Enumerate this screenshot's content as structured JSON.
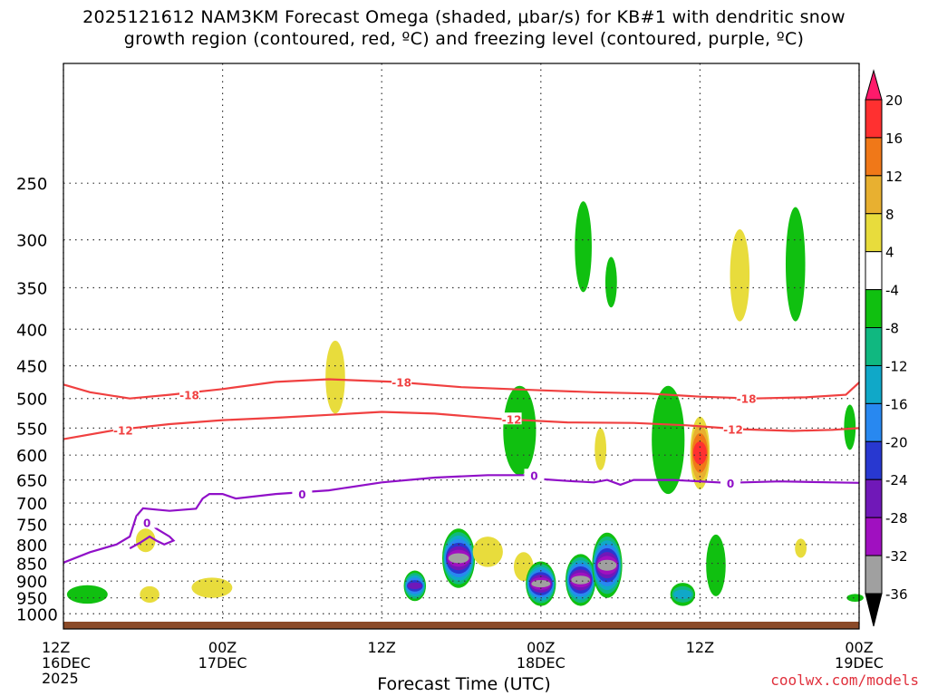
{
  "title_line1": "2025121612 NAM3KM Forecast Omega (shaded, μbar/s) for KB#1 with dendritic snow",
  "title_line2": "growth region (contoured, red, ºC) and freezing level (contoured, purple, ºC)",
  "credit": "coolwx.com/models",
  "chart_data": {
    "type": "heatmap",
    "title": "2025121612 NAM3KM Forecast Omega (shaded, μbar/s) for KB#1 with dendritic snow growth region (contoured, red, ºC) and freezing level (contoured, purple, ºC)",
    "xlabel": "Forecast Time (UTC)",
    "ylabel": "",
    "x_unit": "hours from 2025-12-16 12Z",
    "xlim": [
      0,
      60
    ],
    "ylim": [
      1050,
      170
    ],
    "y_scale": "log-pressure",
    "grid": true,
    "y_ticks": [
      250,
      300,
      350,
      400,
      450,
      500,
      550,
      600,
      650,
      700,
      750,
      800,
      850,
      900,
      950,
      1000
    ],
    "x_ticks": [
      {
        "x": 0,
        "label": "12Z\n16DEC\n2025"
      },
      {
        "x": 12,
        "label": "00Z\n17DEC"
      },
      {
        "x": 24,
        "label": "12Z"
      },
      {
        "x": 36,
        "label": "00Z\n18DEC"
      },
      {
        "x": 48,
        "label": "12Z"
      },
      {
        "x": 60,
        "label": "00Z\n19DEC"
      }
    ],
    "colorbar": {
      "labels": [
        "20",
        "16",
        "12",
        "8",
        "4",
        "-4",
        "-8",
        "-12",
        "-16",
        "-20",
        "-24",
        "-28",
        "-32",
        "-36"
      ],
      "colors": [
        "#ff1a6b",
        "#ff3030",
        "#f07818",
        "#e8b030",
        "#e8dc3c",
        "#ffffff",
        "#10c010",
        "#10b880",
        "#10a8c8",
        "#2888f0",
        "#2838d0",
        "#7018b8",
        "#a010c0",
        "#a0a0a0",
        "#000000"
      ]
    },
    "contours": [
      {
        "name": "-18",
        "color": "#f04040",
        "points": [
          [
            0,
            478
          ],
          [
            2,
            490
          ],
          [
            5,
            500
          ],
          [
            8,
            494
          ],
          [
            12,
            485
          ],
          [
            16,
            474
          ],
          [
            20,
            470
          ],
          [
            25,
            474
          ],
          [
            30,
            482
          ],
          [
            36,
            487
          ],
          [
            40,
            490
          ],
          [
            44,
            492
          ],
          [
            48,
            497
          ],
          [
            52,
            500
          ],
          [
            56,
            498
          ],
          [
            59,
            494
          ],
          [
            60,
            475
          ]
        ],
        "label_at": [
          [
            9.5,
            "-18"
          ],
          [
            25.5,
            "-18"
          ],
          [
            51.5,
            "-18"
          ]
        ]
      },
      {
        "name": "-12",
        "color": "#f04040",
        "points": [
          [
            0,
            570
          ],
          [
            4,
            553
          ],
          [
            8,
            543
          ],
          [
            12,
            536
          ],
          [
            16,
            532
          ],
          [
            20,
            527
          ],
          [
            24,
            522
          ],
          [
            28,
            525
          ],
          [
            33,
            534
          ],
          [
            38,
            540
          ],
          [
            43,
            541
          ],
          [
            47,
            545
          ],
          [
            51,
            552
          ],
          [
            55,
            555
          ],
          [
            58,
            553
          ],
          [
            60,
            550
          ]
        ],
        "label_at": [
          [
            4.5,
            "-12"
          ],
          [
            33.8,
            "-12"
          ],
          [
            50.5,
            "-12"
          ]
        ]
      },
      {
        "name": "0",
        "color": "#9010c8",
        "points": [
          [
            0,
            848
          ],
          [
            2,
            820
          ],
          [
            4,
            800
          ],
          [
            5,
            780
          ],
          [
            5.5,
            730
          ],
          [
            6,
            712
          ],
          [
            7,
            715
          ],
          [
            8,
            718
          ],
          [
            10,
            713
          ],
          [
            10.5,
            690
          ],
          [
            11,
            680
          ],
          [
            12,
            680
          ],
          [
            13,
            690
          ],
          [
            16,
            680
          ],
          [
            20,
            672
          ],
          [
            24,
            655
          ],
          [
            28,
            645
          ],
          [
            32,
            640
          ],
          [
            35,
            640
          ],
          [
            36,
            648
          ],
          [
            38,
            652
          ],
          [
            40,
            655
          ],
          [
            41,
            650
          ],
          [
            42,
            660
          ],
          [
            43,
            650
          ],
          [
            46,
            650
          ],
          [
            50,
            656
          ],
          [
            54,
            653
          ],
          [
            58,
            655
          ],
          [
            60,
            656
          ]
        ],
        "label_at": [
          [
            18,
            "0"
          ],
          [
            35.5,
            "0"
          ],
          [
            50.3,
            "0"
          ]
        ]
      },
      {
        "name": "0",
        "color": "#9010c8",
        "points": [
          [
            5.5,
            730
          ],
          [
            6.5,
            745
          ],
          [
            7,
            760
          ],
          [
            7.5,
            770
          ],
          [
            8,
            780
          ],
          [
            8.3,
            790
          ],
          [
            7.6,
            800
          ],
          [
            7,
            790
          ],
          [
            6.5,
            780
          ],
          [
            5.8,
            795
          ],
          [
            5,
            810
          ]
        ],
        "label_at": [
          [
            6.3,
            "0"
          ]
        ]
      }
    ],
    "omega_cells": [
      {
        "x": 1.8,
        "p": 940,
        "dx": 1.4,
        "dp": 28,
        "level": -6
      },
      {
        "x": 6.2,
        "p": 790,
        "dx": 0.6,
        "dp": 30,
        "level": 4
      },
      {
        "x": 6.5,
        "p": 940,
        "dx": 0.6,
        "dp": 25,
        "level": 4
      },
      {
        "x": 11.2,
        "p": 920,
        "dx": 1.4,
        "dp": 30,
        "level": 4
      },
      {
        "x": 20.5,
        "p": 470,
        "dx": 0.6,
        "dp": 55,
        "level": 4
      },
      {
        "x": 26.5,
        "p": 915,
        "dx": 0.7,
        "dp": 45,
        "level": -26
      },
      {
        "x": 29.8,
        "p": 840,
        "dx": 1.1,
        "dp": 80,
        "level": -36
      },
      {
        "x": 32.0,
        "p": 820,
        "dx": 1.0,
        "dp": 40,
        "level": 8
      },
      {
        "x": 34.4,
        "p": 560,
        "dx": 1.1,
        "dp": 80,
        "level": -6
      },
      {
        "x": 34.7,
        "p": 860,
        "dx": 0.6,
        "dp": 40,
        "level": 8
      },
      {
        "x": 36.0,
        "p": 910,
        "dx": 1.0,
        "dp": 65,
        "level": -36
      },
      {
        "x": 39.0,
        "p": 900,
        "dx": 1.0,
        "dp": 75,
        "level": -36
      },
      {
        "x": 39.2,
        "p": 310,
        "dx": 0.5,
        "dp": 45,
        "level": -8
      },
      {
        "x": 40.5,
        "p": 590,
        "dx": 0.3,
        "dp": 40,
        "level": 4
      },
      {
        "x": 41.0,
        "p": 860,
        "dx": 1.0,
        "dp": 90,
        "level": -36
      },
      {
        "x": 41.3,
        "p": 345,
        "dx": 0.3,
        "dp": 28,
        "level": -6
      },
      {
        "x": 45.6,
        "p": 580,
        "dx": 1.1,
        "dp": 100,
        "level": -6
      },
      {
        "x": 46.7,
        "p": 940,
        "dx": 0.8,
        "dp": 35,
        "level": -14
      },
      {
        "x": 48.0,
        "p": 600,
        "dx": 0.6,
        "dp": 70,
        "level": 18
      },
      {
        "x": 49.2,
        "p": 860,
        "dx": 0.6,
        "dp": 85,
        "level": -8
      },
      {
        "x": 51.0,
        "p": 340,
        "dx": 0.6,
        "dp": 50,
        "level": 4
      },
      {
        "x": 55.2,
        "p": 330,
        "dx": 0.6,
        "dp": 60,
        "level": -8
      },
      {
        "x": 55.6,
        "p": 810,
        "dx": 0.3,
        "dp": 25,
        "level": 4
      },
      {
        "x": 59.3,
        "p": 550,
        "dx": 0.3,
        "dp": 40,
        "level": -6
      },
      {
        "x": 59.7,
        "p": 950,
        "dx": 0.5,
        "dp": 12,
        "level": -8
      }
    ]
  }
}
